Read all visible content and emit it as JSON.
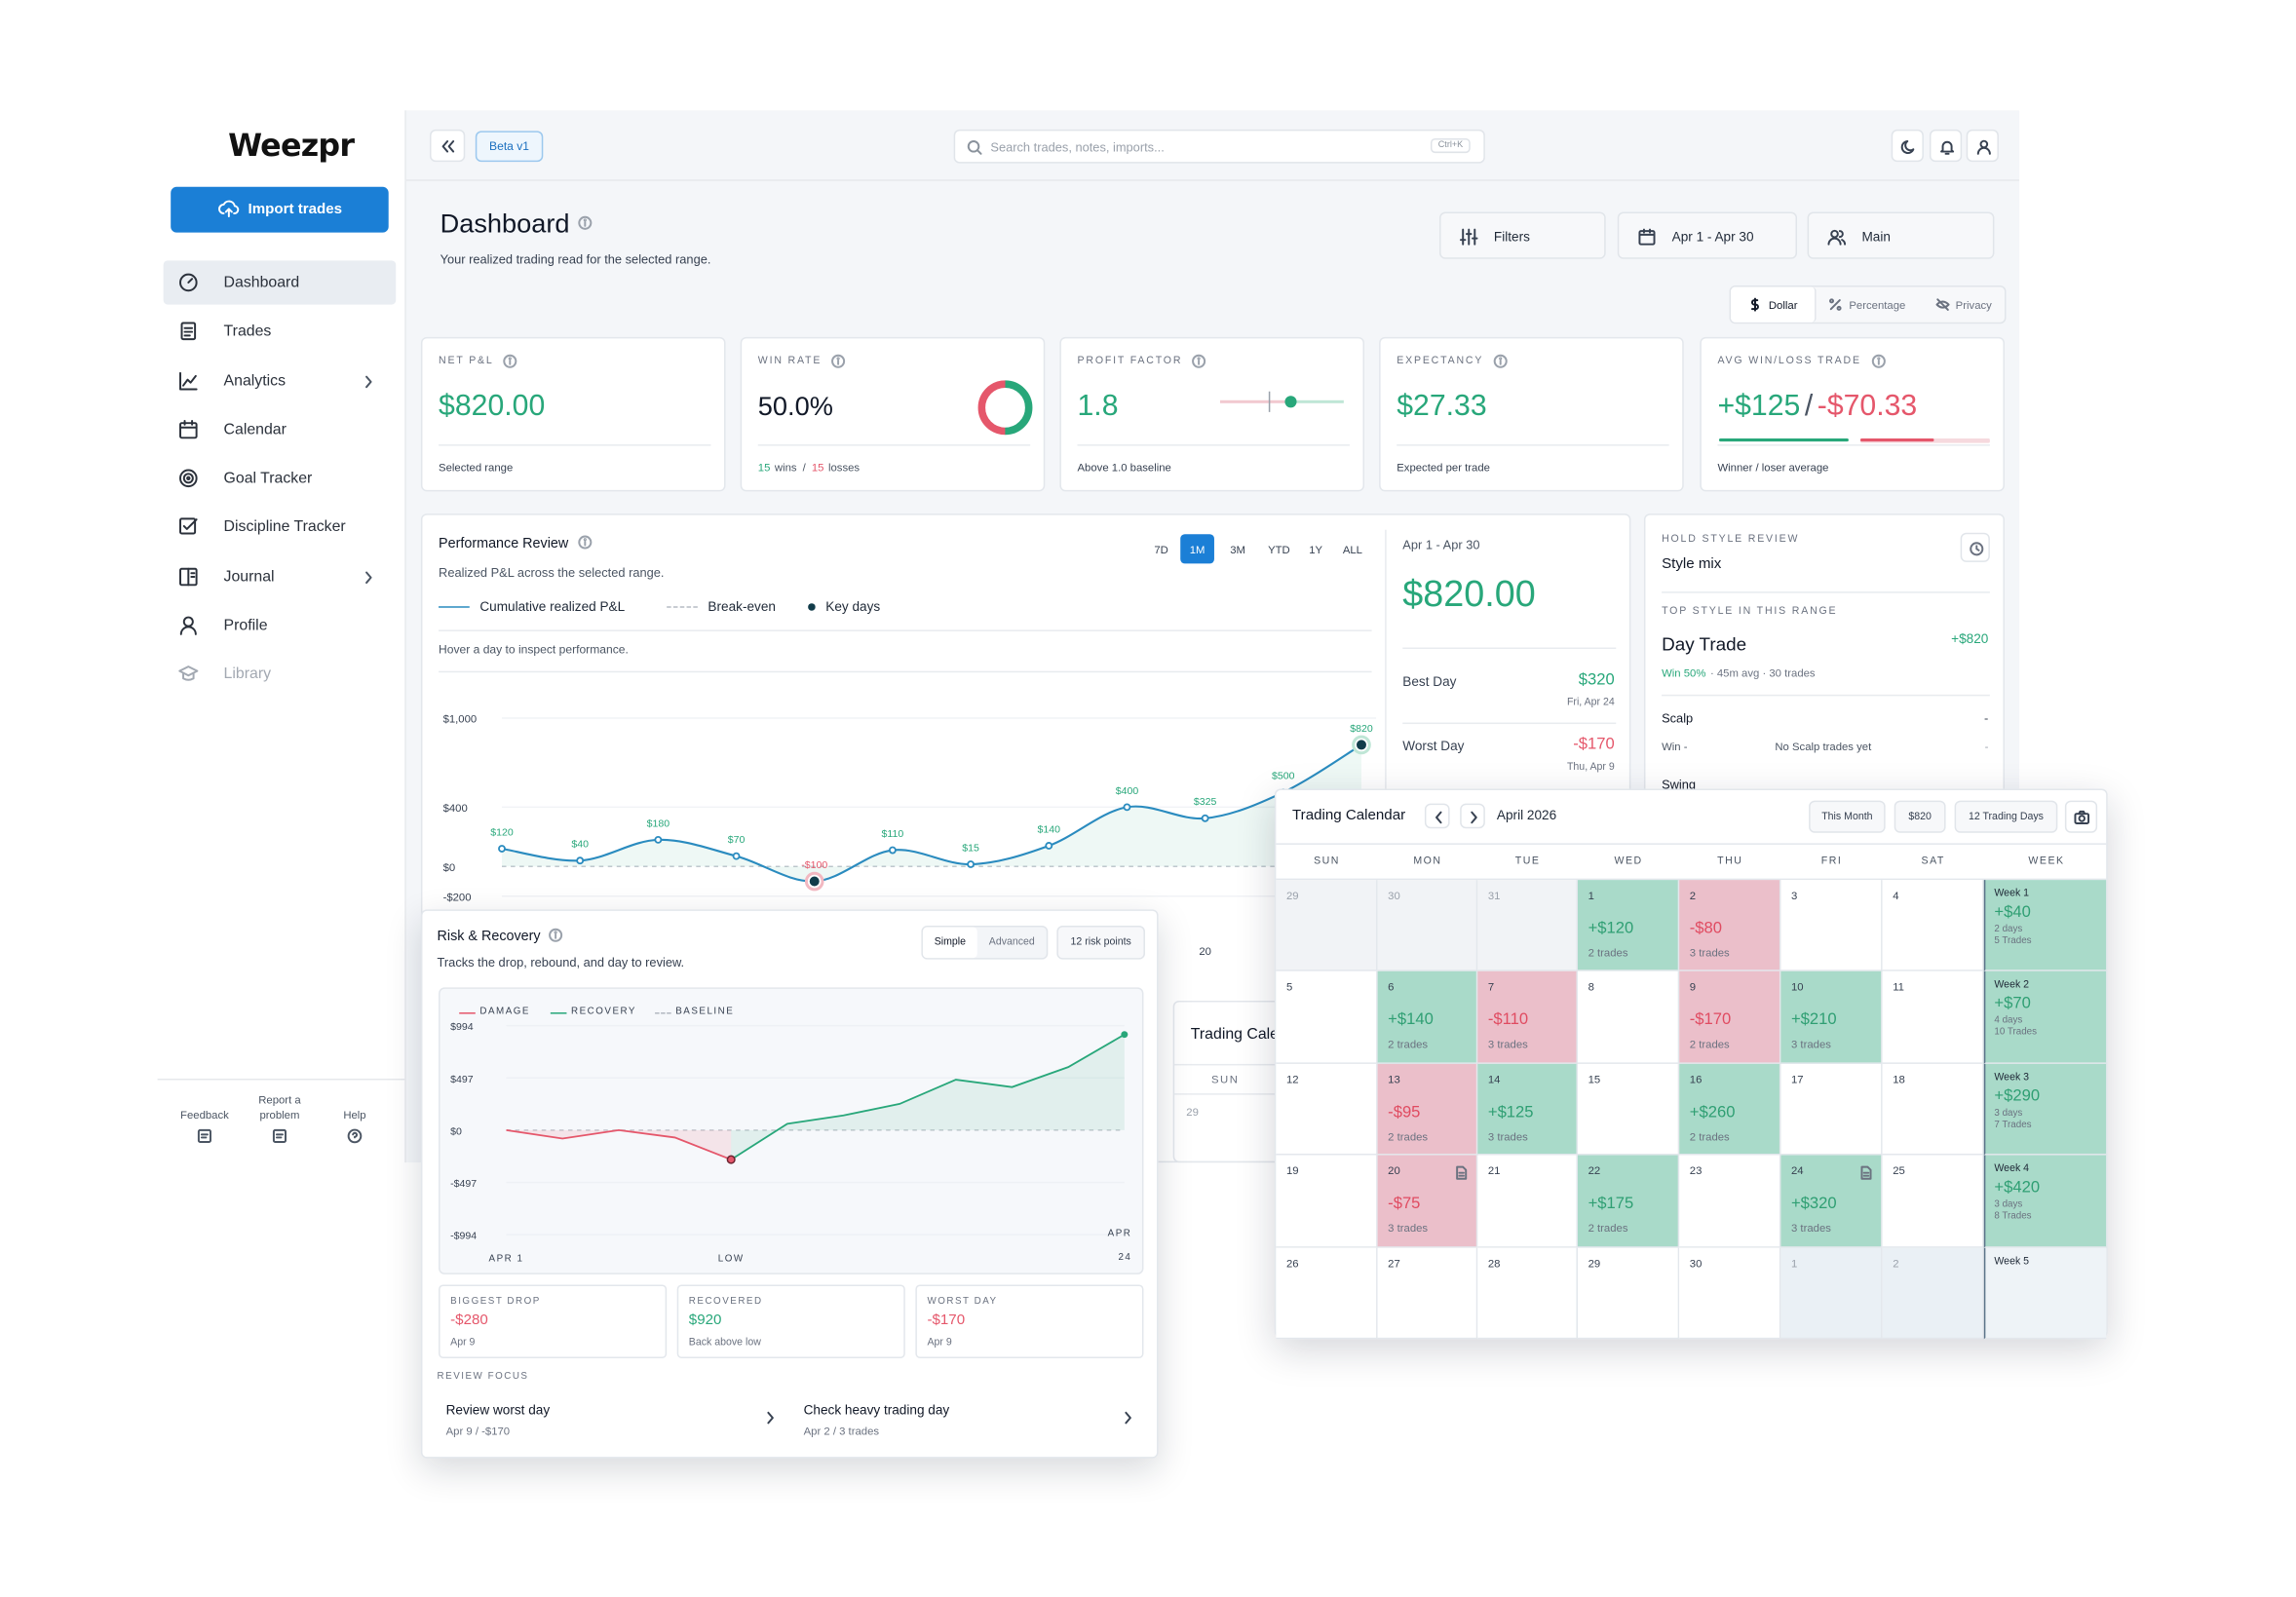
{
  "sidebar": {
    "logo": "Weezpr",
    "import_button": "Import trades",
    "nav": [
      {
        "label": "Dashboard",
        "active": true
      },
      {
        "label": "Trades"
      },
      {
        "label": "Analytics",
        "has_submenu": true
      },
      {
        "label": "Calendar"
      },
      {
        "label": "Goal Tracker"
      },
      {
        "label": "Discipline Tracker"
      },
      {
        "label": "Journal",
        "has_submenu": true
      },
      {
        "label": "Profile"
      },
      {
        "label": "Library",
        "disabled": true
      }
    ],
    "footer": [
      "Feedback",
      "Report a problem",
      "Help"
    ]
  },
  "topbar": {
    "badge": "Beta v1",
    "search_placeholder": "Search trades, notes, imports...",
    "shortcut": "Ctrl+K"
  },
  "header": {
    "title": "Dashboard",
    "subtitle": "Your realized trading read for the selected range.",
    "filters": "Filters",
    "date_range": "Apr 1 - Apr 30",
    "account": "Main",
    "display_modes": [
      "Dollar",
      "Percentage",
      "Privacy"
    ],
    "active_mode": "Dollar"
  },
  "kpis": {
    "net_pnl": {
      "label": "NET P&L",
      "value": "$820.00",
      "note": "Selected range"
    },
    "win_rate": {
      "label": "WIN RATE",
      "value": "50.0%",
      "wins": 15,
      "wins_label": "wins",
      "separator": "/",
      "losses": 15,
      "losses_label": "losses"
    },
    "profit_factor": {
      "label": "PROFIT FACTOR",
      "value": "1.8",
      "note": "Above 1.0 baseline"
    },
    "expectancy": {
      "label": "EXPECTANCY",
      "value": "$27.33",
      "note": "Expected per trade"
    },
    "avg_trade": {
      "label": "AVG WIN/LOSS TRADE",
      "win": "+$125",
      "separator": "/",
      "loss": "-$70.33",
      "note": "Winner / loser average"
    }
  },
  "performance": {
    "title": "Performance Review",
    "subtitle": "Realized P&L across the selected range.",
    "ranges": [
      "7D",
      "1M",
      "3M",
      "YTD",
      "1Y",
      "ALL"
    ],
    "active_range": "1M",
    "legend": [
      "Cumulative realized P&L",
      "Break-even",
      "Key days"
    ],
    "hint": "Hover a day to inspect performance.",
    "chart": {
      "type": "line",
      "categories": [
        null,
        null,
        null,
        null,
        null,
        null,
        null,
        null,
        null,
        "20",
        null,
        null
      ],
      "values": [
        120,
        40,
        180,
        70,
        -100,
        110,
        15,
        140,
        400,
        325,
        500,
        820
      ],
      "value_labels": [
        "$120",
        "$40",
        "$180",
        "$70",
        "-$100",
        "$110",
        "$15",
        "$140",
        "$400",
        "$325",
        "$500",
        "$820"
      ],
      "key_days": [
        4,
        11
      ],
      "color": "#2a8bbf",
      "ylim": [
        -200,
        1000
      ],
      "yticks": [
        {
          "value": 1000,
          "label": "$1,000"
        },
        {
          "value": 400,
          "label": "$400"
        },
        {
          "value": 0,
          "label": "$0"
        },
        {
          "value": -200,
          "label": "-$200"
        }
      ]
    },
    "summary": {
      "range": "Apr 1 - Apr 30",
      "total": "$820.00",
      "best_day": {
        "label": "Best Day",
        "value": "$320",
        "date": "Fri, Apr 24"
      },
      "worst_day": {
        "label": "Worst Day",
        "value": "-$170",
        "date": "Thu, Apr 9"
      }
    }
  },
  "hold_style": {
    "eyebrow": "HOLD STYLE REVIEW",
    "title": "Style mix",
    "top_label": "TOP STYLE IN THIS RANGE",
    "top": {
      "name": "Day Trade",
      "pnl": "+$820",
      "win": "Win 50%",
      "details": "· 45m avg · 30 trades"
    },
    "rows": [
      {
        "name": "Scalp",
        "pnl": "-",
        "win": "Win -",
        "details": "No Scalp trades yet",
        "extra": "-"
      },
      {
        "name": "Swing"
      }
    ]
  },
  "ghost_calendar": {
    "title": "Trading Calendar",
    "weekday": "SUN",
    "day": 29
  },
  "risk": {
    "title": "Risk & Recovery",
    "subtitle": "Tracks the drop, rebound, and day to review.",
    "modes": [
      "Simple",
      "Advanced"
    ],
    "active_mode": "Simple",
    "points_button": "12 risk points",
    "legend": [
      "DAMAGE",
      "RECOVERY",
      "BASELINE"
    ],
    "chart": {
      "type": "line",
      "categories": [
        "APR 1",
        null,
        null,
        null,
        "LOW",
        null,
        null,
        null,
        null,
        null,
        null,
        "APR 24"
      ],
      "values": [
        0,
        -80,
        0,
        -70,
        -280,
        60,
        140,
        250,
        480,
        410,
        600,
        910
      ],
      "ylim": [
        -994,
        994
      ],
      "yticks": [
        {
          "value": 994,
          "label": "$994"
        },
        {
          "value": 497,
          "label": "$497"
        },
        {
          "value": 0,
          "label": "$0"
        },
        {
          "value": -497,
          "label": "-$497"
        },
        {
          "value": -994,
          "label": "-$994"
        }
      ]
    },
    "stats": [
      {
        "label": "BIGGEST DROP",
        "value": "-$280",
        "note": "Apr 9"
      },
      {
        "label": "RECOVERED",
        "value": "$920",
        "note": "Back above low"
      },
      {
        "label": "WORST DAY",
        "value": "-$170",
        "note": "Apr 9"
      }
    ],
    "focus_title": "REVIEW FOCUS",
    "focus": [
      {
        "title": "Review worst day",
        "note": "Apr 9 / -$170"
      },
      {
        "title": "Check heavy trading day",
        "note": "Apr 2 / 3 trades"
      }
    ]
  },
  "calendar": {
    "title": "Trading Calendar",
    "month": "April 2026",
    "buttons": [
      "This Month",
      "$820",
      "12 Trading Days"
    ],
    "weekdays": [
      "SUN",
      "MON",
      "TUE",
      "WED",
      "THU",
      "FRI",
      "SAT",
      "WEEK"
    ],
    "weeks": [
      {
        "days": [
          {
            "day": 29,
            "outside": true
          },
          {
            "day": 30,
            "outside": true
          },
          {
            "day": 31,
            "outside": true
          },
          {
            "day": 1,
            "pnl": "+$120",
            "trades": "2 trades"
          },
          {
            "day": 2,
            "pnl": "-$80",
            "trades": "3 trades"
          },
          {
            "day": 3
          },
          {
            "day": 4
          }
        ],
        "summary": {
          "label": "Week 1",
          "pnl": "+$40",
          "days": "2 days",
          "trades": "5 Trades"
        }
      },
      {
        "days": [
          {
            "day": 5
          },
          {
            "day": 6,
            "pnl": "+$140",
            "trades": "2 trades"
          },
          {
            "day": 7,
            "pnl": "-$110",
            "trades": "3 trades"
          },
          {
            "day": 8
          },
          {
            "day": 9,
            "pnl": "-$170",
            "trades": "2 trades"
          },
          {
            "day": 10,
            "pnl": "+$210",
            "trades": "3 trades"
          },
          {
            "day": 11
          }
        ],
        "summary": {
          "label": "Week 2",
          "pnl": "+$70",
          "days": "4 days",
          "trades": "10 Trades"
        }
      },
      {
        "days": [
          {
            "day": 12
          },
          {
            "day": 13,
            "pnl": "-$95",
            "trades": "2 trades"
          },
          {
            "day": 14,
            "pnl": "+$125",
            "trades": "3 trades"
          },
          {
            "day": 15
          },
          {
            "day": 16,
            "pnl": "+$260",
            "trades": "2 trades"
          },
          {
            "day": 17
          },
          {
            "day": 18
          }
        ],
        "summary": {
          "label": "Week 3",
          "pnl": "+$290",
          "days": "3 days",
          "trades": "7 Trades"
        }
      },
      {
        "days": [
          {
            "day": 19
          },
          {
            "day": 20,
            "pnl": "-$75",
            "trades": "3 trades",
            "note": true
          },
          {
            "day": 21
          },
          {
            "day": 22,
            "pnl": "+$175",
            "trades": "2 trades"
          },
          {
            "day": 23
          },
          {
            "day": 24,
            "pnl": "+$320",
            "trades": "3 trades",
            "note": true
          },
          {
            "day": 25
          }
        ],
        "summary": {
          "label": "Week 4",
          "pnl": "+$420",
          "days": "3 days",
          "trades": "8 Trades"
        }
      },
      {
        "days": [
          {
            "day": 26
          },
          {
            "day": 27
          },
          {
            "day": 28
          },
          {
            "day": 29
          },
          {
            "day": 30
          },
          {
            "day": 1,
            "outside": true
          },
          {
            "day": 2,
            "outside": true
          }
        ],
        "summary": {
          "label": "Week 5"
        }
      }
    ]
  }
}
